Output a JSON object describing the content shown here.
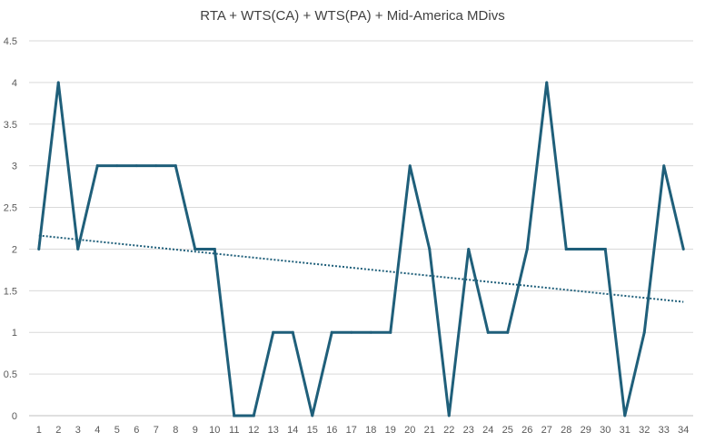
{
  "chart_data": {
    "type": "line",
    "title": "RTA + WTS(CA) + WTS(PA) + Mid-America MDivs",
    "xlabel": "",
    "ylabel": "",
    "categories": [
      "1",
      "2",
      "3",
      "4",
      "5",
      "6",
      "7",
      "8",
      "9",
      "10",
      "11",
      "12",
      "13",
      "14",
      "15",
      "16",
      "17",
      "18",
      "19",
      "20",
      "21",
      "22",
      "23",
      "24",
      "25",
      "26",
      "27",
      "28",
      "29",
      "30",
      "31",
      "32",
      "33",
      "34"
    ],
    "series": [
      {
        "values": [
          2,
          4,
          2,
          3,
          3,
          3,
          3,
          3,
          2,
          2,
          0,
          0,
          1,
          1,
          0,
          1,
          1,
          1,
          1,
          3,
          2,
          0,
          2,
          1,
          1,
          2,
          4,
          2,
          2,
          2,
          0,
          1,
          3,
          2
        ],
        "color": "#1f5f7a"
      }
    ],
    "trendline": {
      "type": "linear",
      "style": "dotted",
      "color": "#1f5f7a"
    },
    "ylim": [
      0,
      4.5
    ],
    "yticks": [
      "0",
      "0.5",
      "1",
      "1.5",
      "2",
      "2.5",
      "3",
      "3.5",
      "4",
      "4.5"
    ],
    "grid": true,
    "legend": "none",
    "colors": {
      "gridline": "#d9d9d9",
      "axis": "#bfbfbf",
      "text": "#595959"
    }
  }
}
